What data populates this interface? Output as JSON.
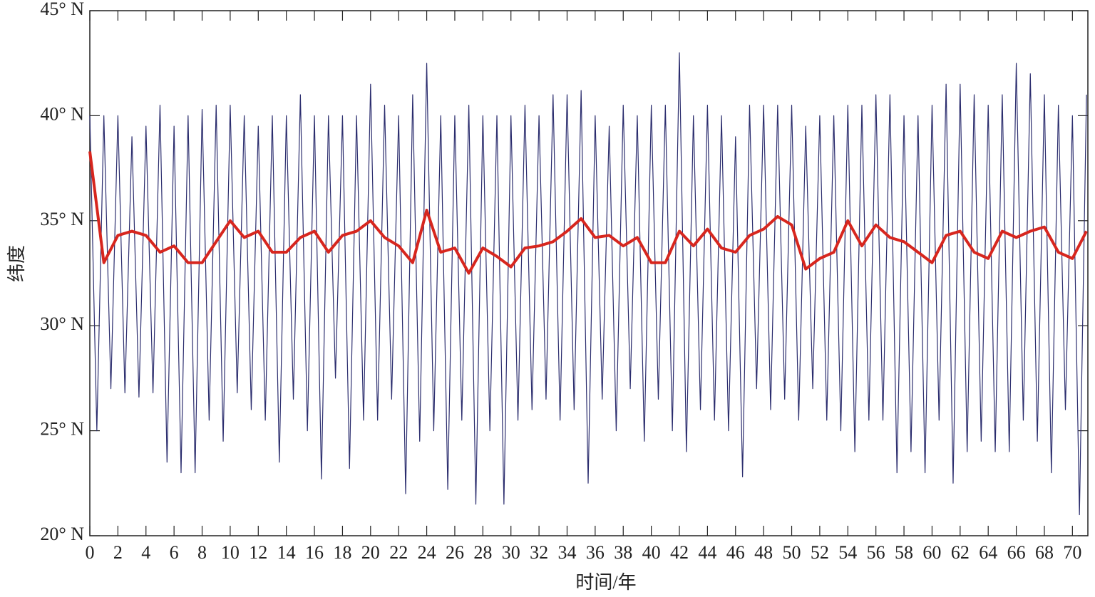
{
  "chart_data": {
    "type": "line",
    "xlabel": "时间/年",
    "ylabel": "纬度",
    "xlim": [
      0,
      71.1
    ],
    "ylim": [
      20,
      45
    ],
    "xticks": [
      0,
      2,
      4,
      6,
      8,
      10,
      12,
      14,
      16,
      18,
      20,
      22,
      24,
      26,
      28,
      30,
      32,
      34,
      36,
      38,
      40,
      42,
      44,
      46,
      48,
      50,
      52,
      54,
      56,
      58,
      60,
      62,
      64,
      66,
      68,
      70
    ],
    "yticks": [
      {
        "value": 20,
        "label": "20° N"
      },
      {
        "value": 25,
        "label": "25° N"
      },
      {
        "value": 30,
        "label": "30° N"
      },
      {
        "value": 35,
        "label": "35° N"
      },
      {
        "value": 40,
        "label": "40° N"
      },
      {
        "value": 45,
        "label": "45° N"
      }
    ],
    "series": [
      {
        "color": "#2b2d6e",
        "width": 1.2,
        "x": [
          0,
          0.5,
          1,
          1.5,
          2,
          2.5,
          3,
          3.5,
          4,
          4.5,
          5,
          5.5,
          6,
          6.5,
          7,
          7.5,
          8,
          8.5,
          9,
          9.5,
          10,
          10.5,
          11,
          11.5,
          12,
          12.5,
          13,
          13.5,
          14,
          14.5,
          15,
          15.5,
          16,
          16.5,
          17,
          17.5,
          18,
          18.5,
          19,
          19.5,
          20,
          20.5,
          21,
          21.5,
          22,
          22.5,
          23,
          23.5,
          24,
          24.5,
          25,
          25.5,
          26,
          26.5,
          27,
          27.5,
          28,
          28.5,
          29,
          29.5,
          30,
          30.5,
          31,
          31.5,
          32,
          32.5,
          33,
          33.5,
          34,
          34.5,
          35,
          35.5,
          36,
          36.5,
          37,
          37.5,
          38,
          38.5,
          39,
          39.5,
          40,
          40.5,
          41,
          41.5,
          42,
          42.5,
          43,
          43.5,
          44,
          44.5,
          45,
          45.5,
          46,
          46.5,
          47,
          47.5,
          48,
          48.5,
          49,
          49.5,
          50,
          50.5,
          51,
          51.5,
          52,
          52.5,
          53,
          53.5,
          54,
          54.5,
          55,
          55.5,
          56,
          56.5,
          57,
          57.5,
          58,
          58.5,
          59,
          59.5,
          60,
          60.5,
          61,
          61.5,
          62,
          62.5,
          63,
          63.5,
          64,
          64.5,
          65,
          65.5,
          66,
          66.5,
          67,
          67.5,
          68,
          68.5,
          69,
          69.5,
          70,
          70.5,
          71
        ],
        "values": [
          40,
          25,
          40,
          27,
          40,
          26.8,
          39,
          26.6,
          39.5,
          26.8,
          40.5,
          23.5,
          39.5,
          23,
          40,
          23,
          40.3,
          25.5,
          40.5,
          24.5,
          40.5,
          26.8,
          40,
          26,
          39.5,
          25.5,
          40,
          23.5,
          40,
          26.5,
          41,
          25,
          40,
          22.7,
          40,
          27.5,
          40,
          23.2,
          40,
          25.5,
          41.5,
          25.5,
          40.5,
          26.5,
          40,
          22,
          41,
          24.5,
          42.5,
          25,
          40,
          22.2,
          40,
          25.5,
          40.5,
          21.5,
          40,
          25,
          40,
          21.5,
          40,
          25.5,
          40.5,
          26,
          40,
          26.5,
          41,
          25.5,
          41,
          26,
          41.2,
          22.5,
          40,
          26.5,
          39.5,
          25,
          40.5,
          27,
          40,
          24.5,
          40.5,
          26.5,
          40.5,
          25,
          43,
          24,
          40,
          26,
          40.5,
          25.5,
          40,
          25,
          39,
          22.8,
          40.5,
          27,
          40.5,
          26,
          40.5,
          26.5,
          40.5,
          25.5,
          39.5,
          27,
          40,
          25.5,
          40,
          25,
          40.5,
          24,
          40.5,
          25.5,
          41,
          25.5,
          41,
          23,
          40,
          24,
          40,
          23,
          40.5,
          25.5,
          41.5,
          22.5,
          41.5,
          24,
          41,
          24.5,
          40.5,
          24,
          41,
          24,
          42.5,
          25.5,
          42,
          24.5,
          41,
          23,
          40.5,
          26,
          40,
          21,
          41
        ]
      },
      {
        "color": "#d7261e",
        "width": 4,
        "x": [
          0,
          1,
          2,
          3,
          4,
          5,
          6,
          7,
          8,
          9,
          10,
          11,
          12,
          13,
          14,
          15,
          16,
          17,
          18,
          19,
          20,
          21,
          22,
          23,
          24,
          25,
          26,
          27,
          28,
          29,
          30,
          31,
          32,
          33,
          34,
          35,
          36,
          37,
          38,
          39,
          40,
          41,
          42,
          43,
          44,
          45,
          46,
          47,
          48,
          49,
          50,
          51,
          52,
          53,
          54,
          55,
          56,
          57,
          58,
          59,
          60,
          61,
          62,
          63,
          64,
          65,
          66,
          67,
          68,
          69,
          70,
          71
        ],
        "values": [
          38.3,
          33,
          34.3,
          34.5,
          34.3,
          33.5,
          33.8,
          33,
          33,
          34,
          35,
          34.2,
          34.5,
          33.5,
          33.5,
          34.2,
          34.5,
          33.5,
          34.3,
          34.5,
          35,
          34.2,
          33.8,
          33,
          35.5,
          33.5,
          33.7,
          32.5,
          33.7,
          33.3,
          32.8,
          33.7,
          33.8,
          34,
          34.5,
          35.1,
          34.2,
          34.3,
          33.8,
          34.2,
          33,
          33,
          34.5,
          33.8,
          34.6,
          33.7,
          33.5,
          34.3,
          34.6,
          35.2,
          34.8,
          32.7,
          33.2,
          33.5,
          35,
          33.8,
          34.8,
          34.2,
          34,
          33.5,
          33,
          34.3,
          34.5,
          33.5,
          33.2,
          34.5,
          34.2,
          34.5,
          34.7,
          33.5,
          33.2,
          34.5
        ]
      }
    ]
  }
}
